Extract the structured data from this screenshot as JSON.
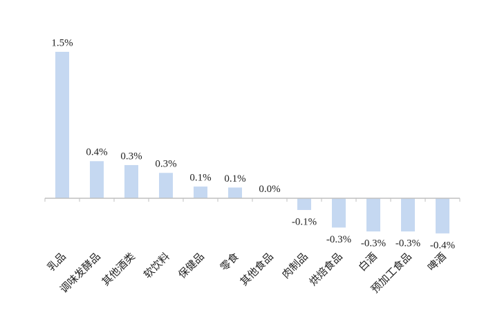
{
  "chart_data": {
    "type": "bar",
    "categories": [
      "乳品",
      "调味发酵品",
      "其他酒类",
      "软饮料",
      "保健品",
      "零食",
      "其他食品",
      "肉制品",
      "烘焙食品",
      "白酒",
      "预加工食品",
      "啤酒"
    ],
    "values": [
      1.5,
      0.38,
      0.34,
      0.26,
      0.12,
      0.11,
      0.004,
      -0.12,
      -0.3,
      -0.34,
      -0.34,
      -0.36
    ],
    "value_labels": [
      "1.5%",
      "0.4%",
      "0.3%",
      "0.3%",
      "0.1%",
      "0.1%",
      "0.0%",
      "-0.1%",
      "-0.3%",
      "-0.3%",
      "-0.3%",
      "-0.4%"
    ],
    "color": "#c5d8f1"
  }
}
